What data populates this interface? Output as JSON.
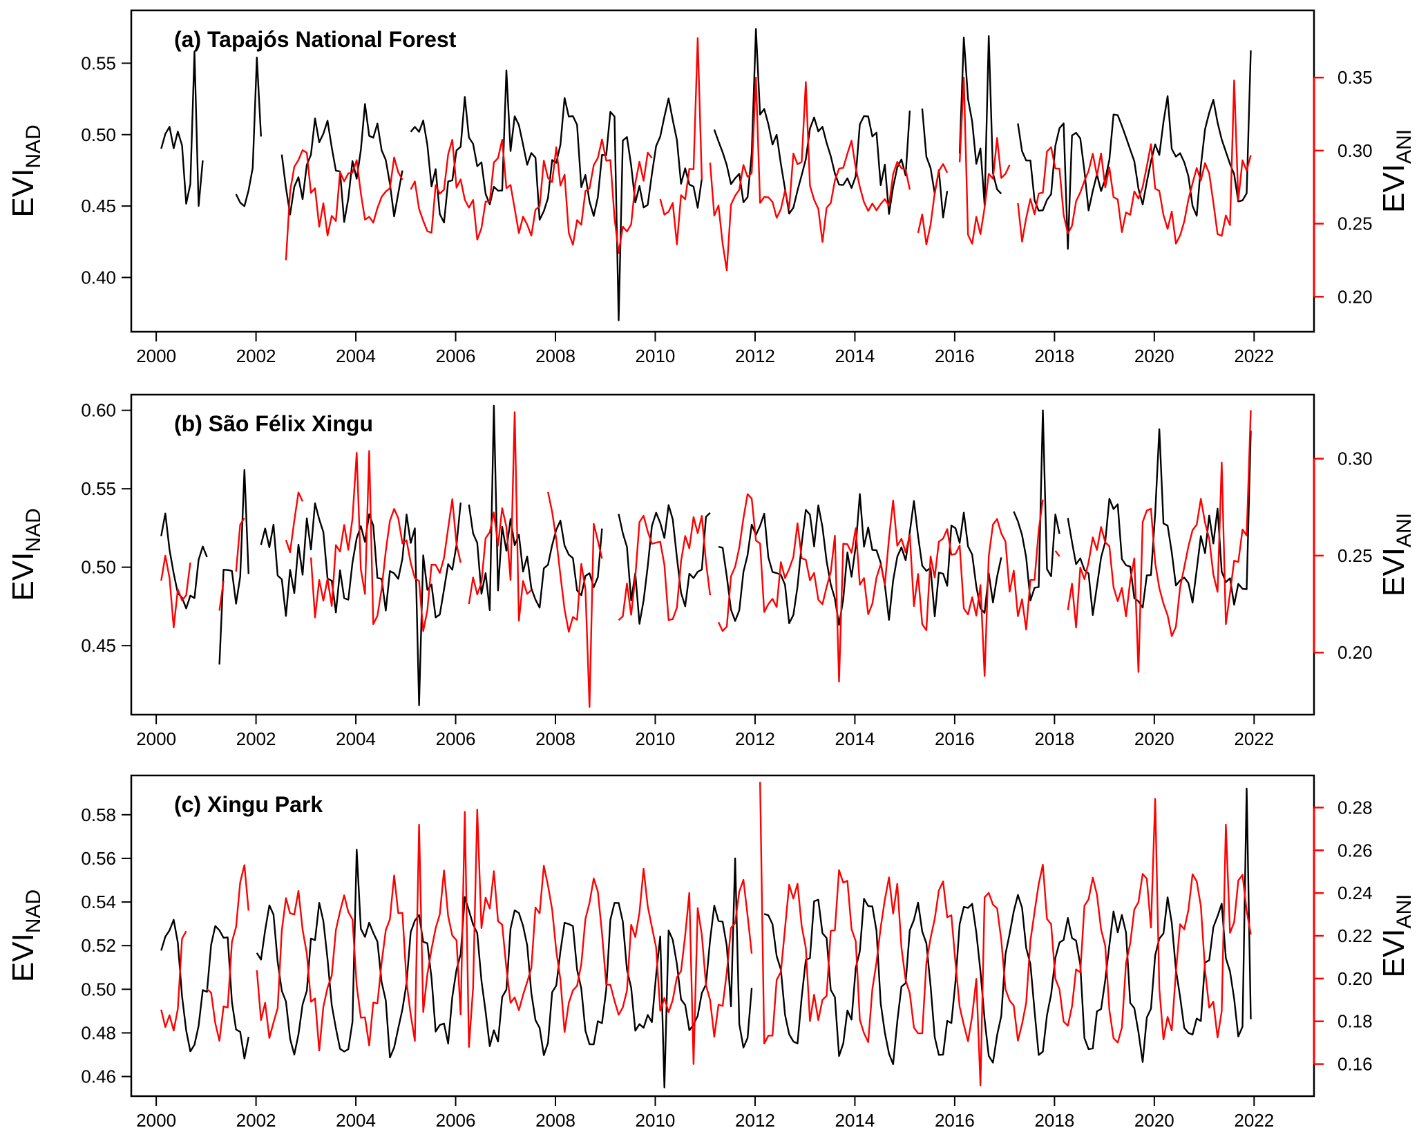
{
  "colors": {
    "nadir": "#000000",
    "anisotropic": "#ff0000",
    "frame": "#000000",
    "background": "#ffffff"
  },
  "chart_data": [
    {
      "type": "line",
      "title": "(a) Tapajós National Forest",
      "ylabel_left": {
        "main": "EVI",
        "sub": "NAD"
      },
      "ylabel_right": {
        "main": "EVI",
        "sub": "ANI"
      },
      "xlim": [
        1999.5,
        2023.2
      ],
      "x_ticks": [
        2000,
        2002,
        2004,
        2006,
        2008,
        2010,
        2012,
        2014,
        2016,
        2018,
        2020,
        2022
      ],
      "x_tick_labels": [
        "2000",
        "2002",
        "2004",
        "2006",
        "2008",
        "2010",
        "2012",
        "2014",
        "2016",
        "2018",
        "2020",
        "2022"
      ],
      "ylim_left": [
        0.362,
        0.587
      ],
      "y_ticks_left": [
        0.4,
        0.45,
        0.5,
        0.55
      ],
      "y_tick_labels_left": [
        "0.40",
        "0.45",
        "0.50",
        "0.55"
      ],
      "ylim_right": [
        0.176,
        0.396
      ],
      "y_ticks_right": [
        0.2,
        0.25,
        0.3,
        0.35
      ],
      "y_tick_labels_right": [
        "0.20",
        "0.25",
        "0.30",
        "0.35"
      ],
      "grid": false,
      "series": [
        {
          "axis": "left",
          "color": "#000000",
          "phase": 0.0,
          "amp": 0.028,
          "noise": 0.018,
          "base": 0.483,
          "seed": 11,
          "gaps": [
            [
              2000.95,
              2001.55
            ],
            [
              2002.1,
              2002.45
            ],
            [
              2004.95,
              2005.05
            ],
            [
              2011.0,
              2011.15
            ],
            [
              2015.1,
              2015.35
            ],
            [
              2015.9,
              2016.05
            ],
            [
              2017.0,
              2017.2
            ]
          ],
          "spikes": [
            [
              2000.8,
              0.558
            ],
            [
              2002.05,
              0.554
            ],
            [
              2007.0,
              0.545
            ],
            [
              2009.25,
              0.37
            ],
            [
              2012.0,
              0.574
            ],
            [
              2016.2,
              0.568
            ],
            [
              2016.7,
              0.569
            ],
            [
              2018.3,
              0.42
            ],
            [
              2021.9,
              0.559
            ]
          ]
        },
        {
          "axis": "right",
          "color": "#ff0000",
          "phase": 0.35,
          "amp": 0.022,
          "noise": 0.016,
          "base": 0.272,
          "seed": 23,
          "start": 2002.6,
          "gaps": [
            [
              2004.95,
              2005.05
            ],
            [
              2010.0,
              2010.05
            ],
            [
              2011.0,
              2011.1
            ],
            [
              2015.1,
              2015.2
            ],
            [
              2015.9,
              2016.05
            ],
            [
              2017.1,
              2017.25
            ]
          ],
          "spikes": [
            [
              2002.6,
              0.225
            ],
            [
              2009.25,
              0.23
            ],
            [
              2010.85,
              0.377
            ],
            [
              2011.45,
              0.218
            ],
            [
              2012.0,
              0.35
            ],
            [
              2013.0,
              0.347
            ],
            [
              2016.2,
              0.35
            ],
            [
              2021.6,
              0.348
            ]
          ]
        }
      ]
    },
    {
      "type": "line",
      "title": "(b) São Félix Xingu",
      "ylabel_left": {
        "main": "EVI",
        "sub": "NAD"
      },
      "ylabel_right": {
        "main": "EVI",
        "sub": "ANI"
      },
      "xlim": [
        1999.5,
        2023.2
      ],
      "x_ticks": [
        2000,
        2002,
        2004,
        2006,
        2008,
        2010,
        2012,
        2014,
        2016,
        2018,
        2020,
        2022
      ],
      "x_tick_labels": [
        "2000",
        "2002",
        "2004",
        "2006",
        "2008",
        "2010",
        "2012",
        "2014",
        "2016",
        "2018",
        "2020",
        "2022"
      ],
      "ylim_left": [
        0.406,
        0.61
      ],
      "y_ticks_left": [
        0.45,
        0.5,
        0.55,
        0.6
      ],
      "y_tick_labels_left": [
        "0.45",
        "0.50",
        "0.55",
        "0.60"
      ],
      "ylim_right": [
        0.168,
        0.333
      ],
      "y_ticks_right": [
        0.2,
        0.25,
        0.3
      ],
      "y_tick_labels_right": [
        "0.20",
        "0.25",
        "0.30"
      ],
      "grid": false,
      "series": [
        {
          "axis": "left",
          "color": "#000000",
          "phase": 0.1,
          "amp": 0.025,
          "noise": 0.018,
          "base": 0.505,
          "seed": 37,
          "gaps": [
            [
              2001.05,
              2001.2
            ],
            [
              2001.85,
              2002.1
            ],
            [
              2006.1,
              2006.25
            ],
            [
              2009.0,
              2009.2
            ],
            [
              2011.1,
              2011.25
            ],
            [
              2017.0,
              2017.15
            ],
            [
              2018.1,
              2018.2
            ]
          ],
          "spikes": [
            [
              2001.3,
              0.438
            ],
            [
              2001.8,
              0.562
            ],
            [
              2005.25,
              0.412
            ],
            [
              2006.8,
              0.603
            ],
            [
              2017.8,
              0.6
            ],
            [
              2020.1,
              0.588
            ],
            [
              2021.95,
              0.587
            ]
          ]
        },
        {
          "axis": "right",
          "color": "#ff0000",
          "phase": 0.4,
          "amp": 0.022,
          "noise": 0.016,
          "base": 0.245,
          "seed": 41,
          "gaps": [
            [
              2000.7,
              2001.25
            ],
            [
              2001.4,
              2001.55
            ],
            [
              2001.8,
              2002.55
            ],
            [
              2003.0,
              2003.1
            ],
            [
              2006.1,
              2006.2
            ],
            [
              2007.55,
              2007.85
            ],
            [
              2009.0,
              2009.2
            ],
            [
              2011.1,
              2011.25
            ],
            [
              2017.8,
              2017.95
            ],
            [
              2018.1,
              2018.2
            ]
          ],
          "spikes": [
            [
              2004.05,
              0.303
            ],
            [
              2004.3,
              0.304
            ],
            [
              2007.15,
              0.324
            ],
            [
              2008.65,
              0.172
            ],
            [
              2013.7,
              0.185
            ],
            [
              2016.6,
              0.188
            ],
            [
              2019.7,
              0.19
            ],
            [
              2021.35,
              0.298
            ],
            [
              2021.95,
              0.325
            ]
          ]
        }
      ]
    },
    {
      "type": "line",
      "title": "(c) Xingu Park",
      "ylabel_left": {
        "main": "EVI",
        "sub": "NAD"
      },
      "ylabel_right": {
        "main": "EVI",
        "sub": "ANI"
      },
      "xlim": [
        1999.5,
        2023.2
      ],
      "x_ticks": [
        2000,
        2002,
        2004,
        2006,
        2008,
        2010,
        2012,
        2014,
        2016,
        2018,
        2020,
        2022
      ],
      "x_tick_labels": [
        "2000",
        "2002",
        "2004",
        "2006",
        "2008",
        "2010",
        "2012",
        "2014",
        "2016",
        "2018",
        "2020",
        "2022"
      ],
      "ylim_left": [
        0.451,
        0.598
      ],
      "y_ticks_left": [
        0.46,
        0.48,
        0.5,
        0.52,
        0.54,
        0.56,
        0.58
      ],
      "y_tick_labels_left": [
        "0.46",
        "0.48",
        "0.50",
        "0.52",
        "0.54",
        "0.56",
        "0.58"
      ],
      "ylim_right": [
        0.145,
        0.295
      ],
      "y_ticks_right": [
        0.16,
        0.18,
        0.2,
        0.22,
        0.24,
        0.26,
        0.28
      ],
      "y_tick_labels_right": [
        "0.16",
        "0.18",
        "0.20",
        "0.22",
        "0.24",
        "0.26",
        "0.28"
      ],
      "grid": false,
      "series": [
        {
          "axis": "left",
          "color": "#000000",
          "phase": 0.0,
          "amp": 0.03,
          "noise": 0.01,
          "base": 0.505,
          "seed": 53,
          "gaps": [
            [
              2001.85,
              2002.0
            ],
            [
              2011.95,
              2012.15
            ]
          ],
          "spikes": [
            [
              2004.0,
              0.564
            ],
            [
              2010.15,
              0.455
            ],
            [
              2011.6,
              0.56
            ],
            [
              2021.85,
              0.592
            ]
          ]
        },
        {
          "axis": "right",
          "color": "#ff0000",
          "phase": 0.5,
          "amp": 0.032,
          "noise": 0.012,
          "base": 0.21,
          "seed": 67,
          "gaps": [
            [
              2000.6,
              2000.95
            ],
            [
              2001.85,
              2002.0
            ],
            [
              2011.95,
              2012.05
            ]
          ],
          "spikes": [
            [
              2005.3,
              0.272
            ],
            [
              2006.2,
              0.278
            ],
            [
              2006.4,
              0.279
            ],
            [
              2010.8,
              0.16
            ],
            [
              2012.1,
              0.292
            ],
            [
              2016.55,
              0.15
            ],
            [
              2020.05,
              0.284
            ],
            [
              2021.4,
              0.272
            ]
          ]
        }
      ]
    }
  ]
}
